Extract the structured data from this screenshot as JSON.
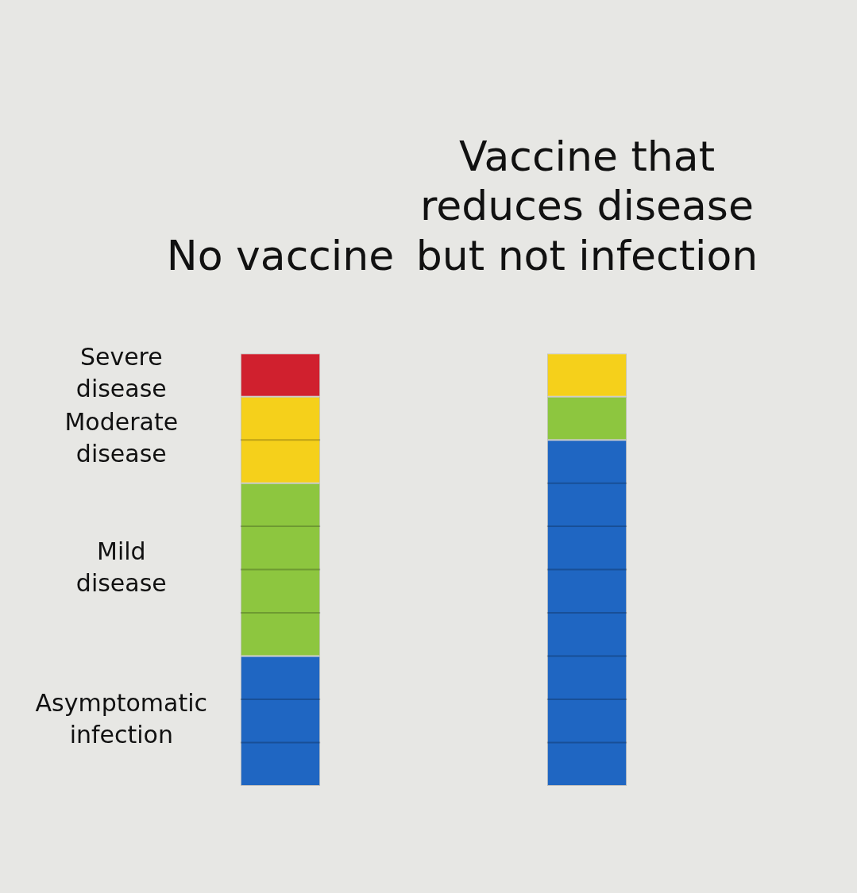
{
  "chart_data": {
    "type": "bar",
    "categories": [
      "No vaccine",
      "Vaccine that reduces disease but not infection"
    ],
    "series": [
      {
        "name": "Asymptomatic infection",
        "color": "#1f66c2",
        "values": [
          3,
          8
        ]
      },
      {
        "name": "Mild disease",
        "color": "#8dc63f",
        "values": [
          4,
          1
        ]
      },
      {
        "name": "Moderate disease",
        "color": "#f5d01b",
        "values": [
          2,
          1
        ]
      },
      {
        "name": "Severe disease",
        "color": "#d0202e",
        "values": [
          1,
          0
        ]
      }
    ],
    "stacked": true,
    "ylim": [
      0,
      10
    ],
    "grid": false,
    "tick_labels": "x"
  }
}
